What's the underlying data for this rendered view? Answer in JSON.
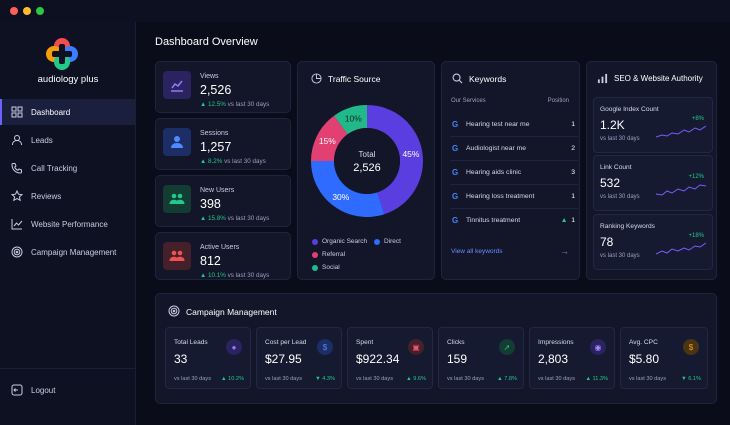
{
  "app": {
    "brand": "audiology plus"
  },
  "window": {
    "dots": [
      "#ff5f57",
      "#febc2e",
      "#28c840"
    ]
  },
  "sidebar": {
    "items": [
      {
        "label": "Dashboard",
        "icon": "grid-icon",
        "active": true
      },
      {
        "label": "Leads",
        "icon": "user-icon"
      },
      {
        "label": "Call Tracking",
        "icon": "phone-icon"
      },
      {
        "label": "Reviews",
        "icon": "star-icon"
      },
      {
        "label": "Website Performance",
        "icon": "chart-icon"
      },
      {
        "label": "Campaign Management",
        "icon": "target-icon"
      }
    ],
    "logout": "Logout"
  },
  "main": {
    "title": "Dashboard Overview"
  },
  "stats": [
    {
      "label": "Views",
      "value": "2,526",
      "change": "▲ 12.5%",
      "suffix": "vs last 30 days",
      "color": "#7b5cff"
    },
    {
      "label": "Sessions",
      "value": "1,257",
      "change": "▲ 8.2%",
      "suffix": "vs last 30 days",
      "color": "#3d7bff"
    },
    {
      "label": "New Users",
      "value": "398",
      "change": "▲ 15.8%",
      "suffix": "vs last 30 days",
      "color": "#22c98a"
    },
    {
      "label": "Active Users",
      "value": "812",
      "change": "▲ 10.1%",
      "suffix": "vs last 30 days",
      "color": "#f05252"
    }
  ],
  "traffic": {
    "title": "Traffic Source",
    "center_label": "Total",
    "center_value": "2,526",
    "legend": [
      "Organic Search",
      "Direct",
      "Referral",
      "Social"
    ]
  },
  "chart_data": {
    "type": "pie",
    "categories": [
      "Organic Search",
      "Direct",
      "Referral",
      "Social"
    ],
    "values": [
      45,
      30,
      15,
      10
    ],
    "labels": [
      "45%",
      "30%",
      "15%",
      "10%"
    ],
    "colors": [
      "#5b3ee0",
      "#2f6bff",
      "#e23f72",
      "#22b98a"
    ],
    "title": "Traffic Source"
  },
  "keywords": {
    "title": "Keywords",
    "col_service": "Our Services",
    "col_position": "Position",
    "rows": [
      {
        "keyword": "Hearing test near me",
        "position": "1"
      },
      {
        "keyword": "Audiologist near me",
        "position": "2"
      },
      {
        "keyword": "Hearing aids clinic",
        "position": "3"
      },
      {
        "keyword": "Hearing loss treatment",
        "position": "1"
      },
      {
        "keyword": "Tinnitus treatment",
        "position": "1",
        "trend": "▲"
      }
    ],
    "view_all": "View all keywords"
  },
  "seo": {
    "title": "SEO & Website Authority",
    "items": [
      {
        "label": "Google Index Count",
        "value": "1.2K",
        "change": "+8%",
        "suffix": "vs last 30 days"
      },
      {
        "label": "Link Count",
        "value": "532",
        "change": "+12%",
        "suffix": "vs last 30 days"
      },
      {
        "label": "Ranking Keywords",
        "value": "78",
        "change": "+18%",
        "suffix": "vs last 30 days"
      }
    ]
  },
  "campaign": {
    "title": "Campaign Management",
    "items": [
      {
        "label": "Total Leads",
        "value": "33",
        "change": "▲ 10.2%",
        "suffix": "vs last 30 days",
        "color": "#7b5cff",
        "icon": "users-icon"
      },
      {
        "label": "Cost per Lead",
        "value": "$27.95",
        "change": "▼ 4.3%",
        "suffix": "vs last 30 days",
        "color": "#3d7bff",
        "icon": "dollar-icon"
      },
      {
        "label": "Spent",
        "value": "$922.34",
        "change": "▲ 9.6%",
        "suffix": "vs last 30 days",
        "color": "#e23f72",
        "icon": "wallet-icon"
      },
      {
        "label": "Clicks",
        "value": "159",
        "change": "▲ 7.8%",
        "suffix": "vs last 30 days",
        "color": "#22c98a",
        "icon": "cursor-icon"
      },
      {
        "label": "Impressions",
        "value": "2,803",
        "change": "▲ 11.3%",
        "suffix": "vs last 30 days",
        "color": "#7b5cff",
        "icon": "eye-icon"
      },
      {
        "label": "Avg. CPC",
        "value": "$5.80",
        "change": "▼ 6.1%",
        "suffix": "vs last 30 days",
        "color": "#f0a020",
        "icon": "coin-icon"
      }
    ]
  }
}
